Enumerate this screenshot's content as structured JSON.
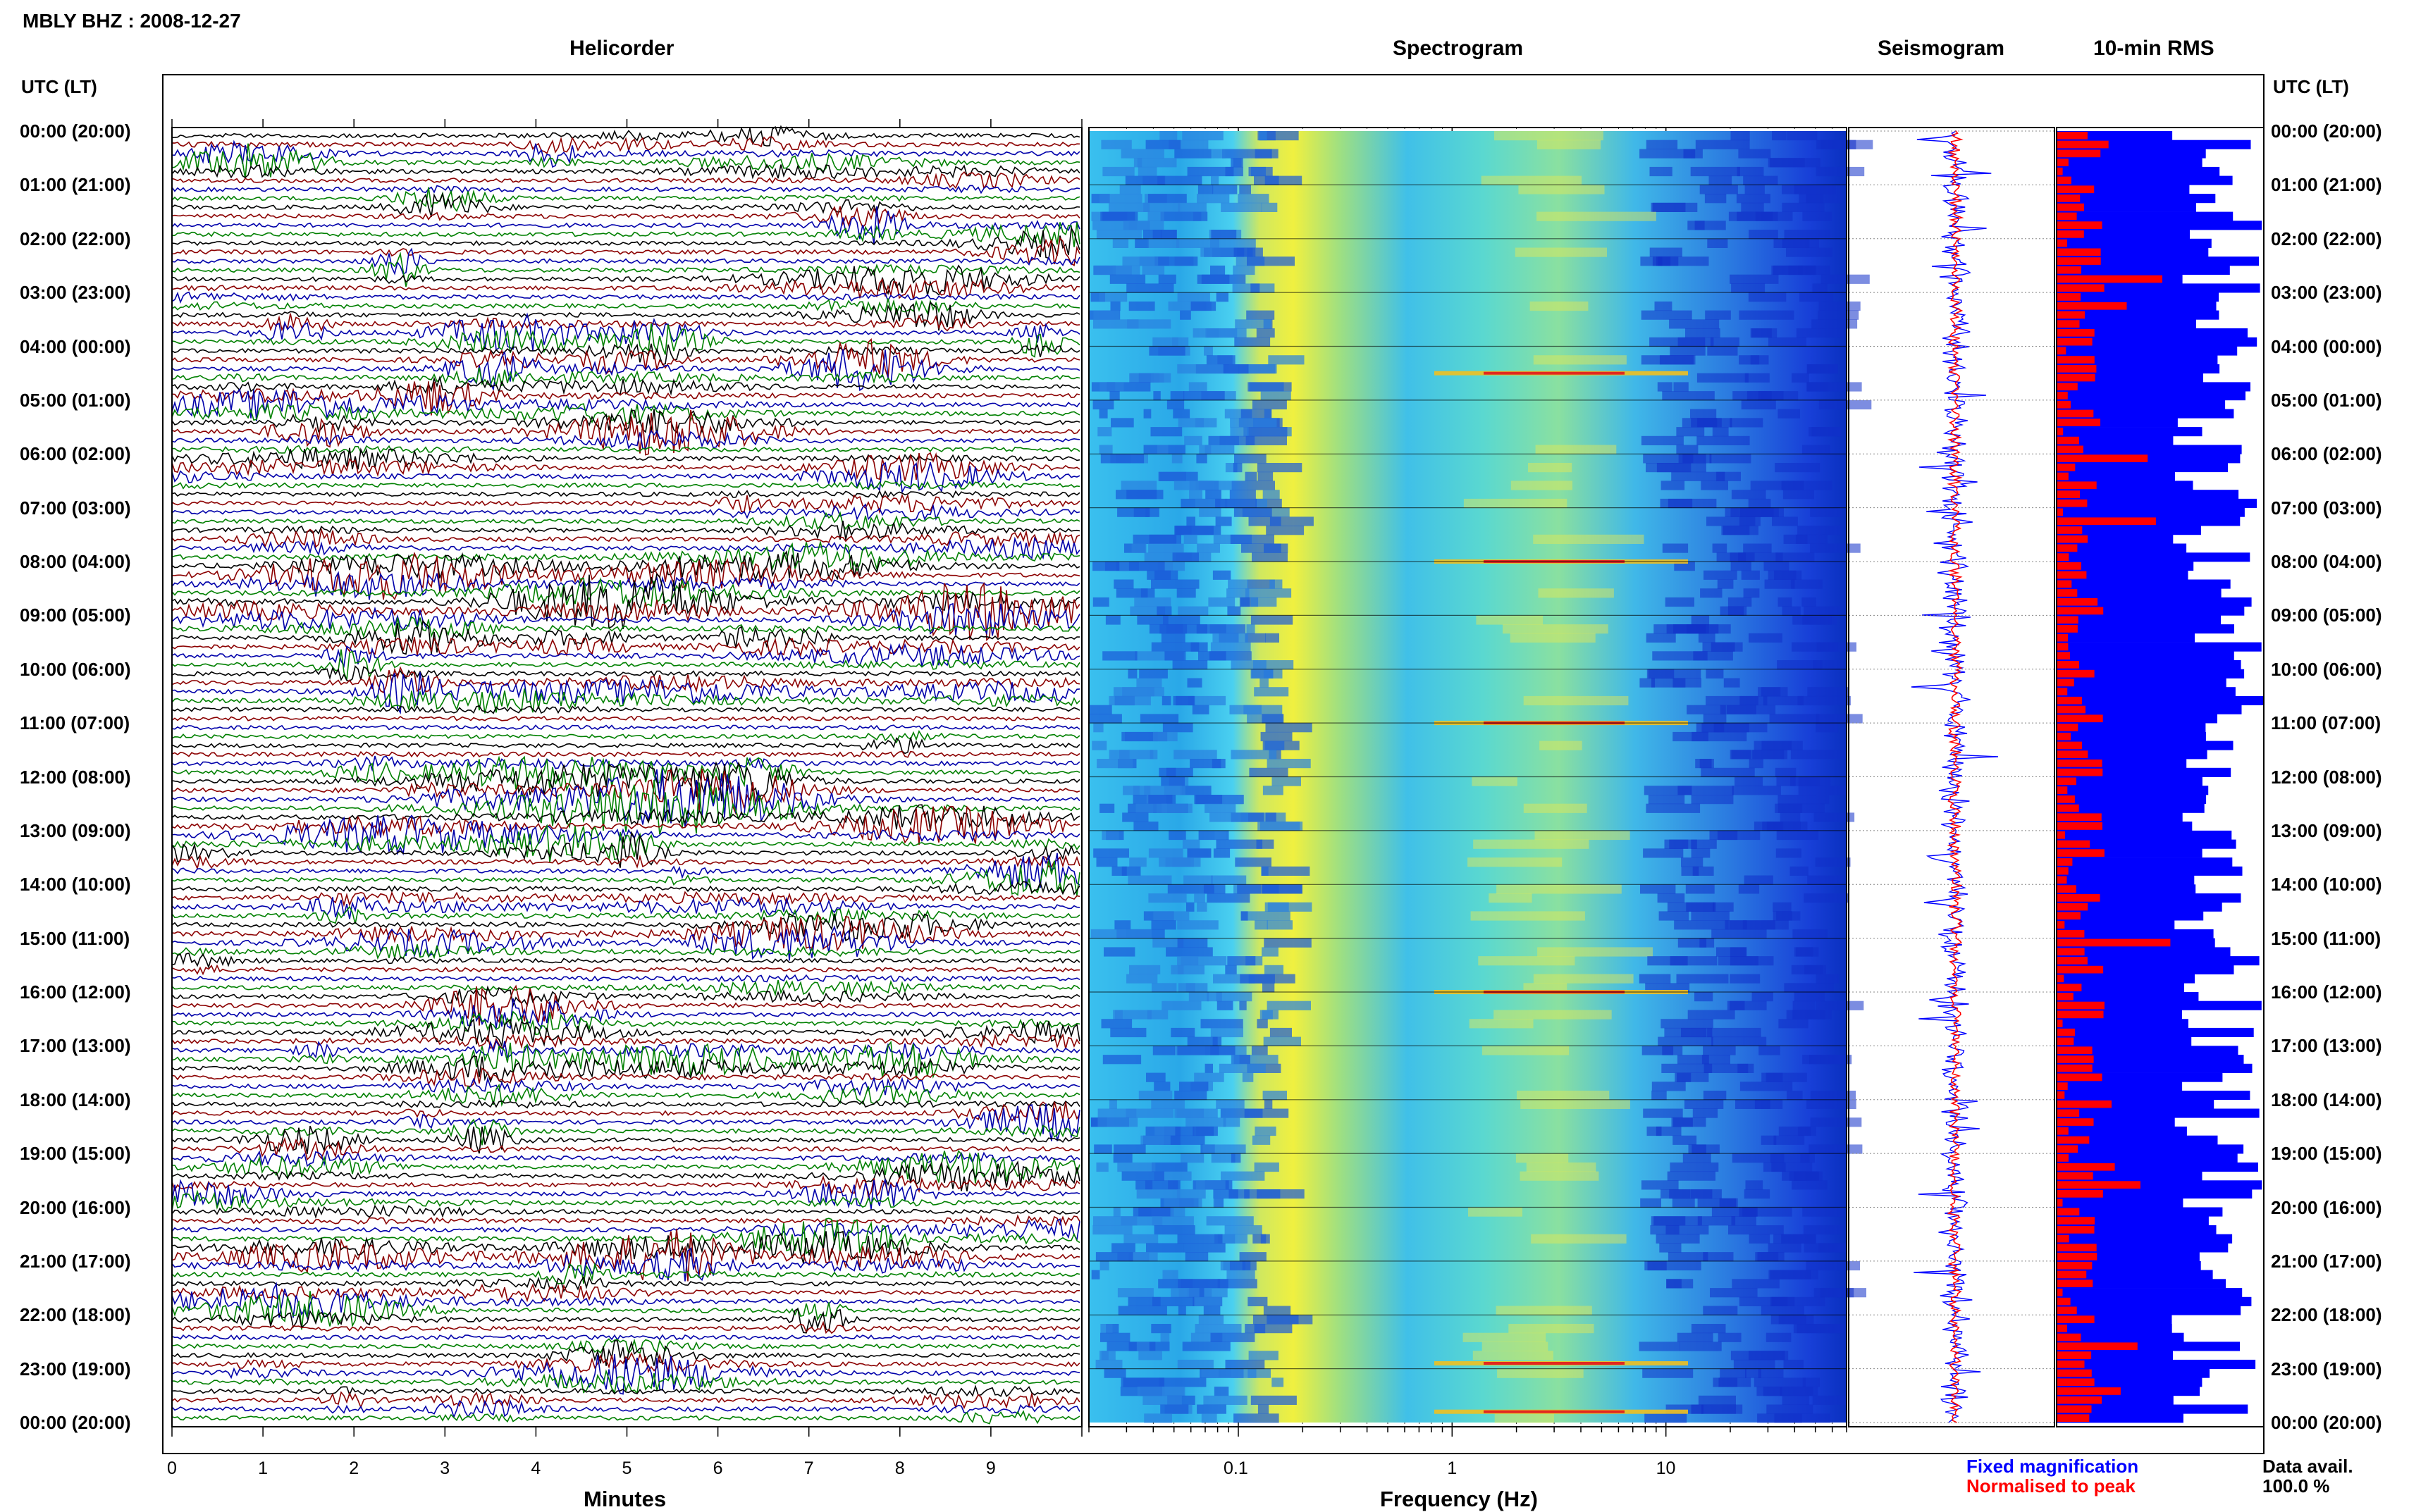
{
  "title": "MBLY BHZ : 2008-12-27",
  "panels": {
    "helicorder": "Helicorder",
    "spectrogram": "Spectrogram",
    "seismogram": "Seismogram",
    "rms": "10-min RMS"
  },
  "time_header_left": "UTC (LT)",
  "time_header_right": "UTC (LT)",
  "time_labels": [
    "00:00 (20:00)",
    "01:00 (21:00)",
    "02:00 (22:00)",
    "03:00 (23:00)",
    "04:00 (00:00)",
    "05:00 (01:00)",
    "06:00 (02:00)",
    "07:00 (03:00)",
    "08:00 (04:00)",
    "09:00 (05:00)",
    "10:00 (06:00)",
    "11:00 (07:00)",
    "12:00 (08:00)",
    "13:00 (09:00)",
    "14:00 (10:00)",
    "15:00 (11:00)",
    "16:00 (12:00)",
    "17:00 (13:00)",
    "18:00 (14:00)",
    "19:00 (15:00)",
    "20:00 (16:00)",
    "21:00 (17:00)",
    "22:00 (18:00)",
    "23:00 (19:00)",
    "00:00 (20:00)"
  ],
  "legend": {
    "fixed": "Fixed magnification",
    "normalised": "Normalised to peak",
    "fixed_color": "#0000ff",
    "normalised_color": "#ff0000"
  },
  "data_avail": {
    "label": "Data avail.",
    "value": "100.0 %"
  },
  "colors": {
    "helicorder_traces": [
      "#000000",
      "#8b0000",
      "#0000aa",
      "#008000"
    ],
    "rms_fixed": "#0000ff",
    "rms_normalised": "#ff0000"
  },
  "chart_data": [
    {
      "type": "line",
      "panel": "Helicorder",
      "xlabel": "Minutes",
      "x_ticks": [
        0,
        1,
        2,
        3,
        4,
        5,
        6,
        7,
        8,
        9
      ],
      "xlim": [
        0,
        10
      ],
      "ylim_hours": [
        0,
        24
      ],
      "row_minutes": 10,
      "rows": 144
    },
    {
      "type": "heatmap",
      "panel": "Spectrogram",
      "xlabel": "Frequency (Hz)",
      "x_scale": "log",
      "x_ticks": [
        0.1,
        1,
        10
      ],
      "x_tick_labels": [
        "0.1",
        "1",
        "10"
      ],
      "xlim": [
        0.02,
        70
      ],
      "dominant_band_hz": [
        0.17,
        0.3
      ],
      "tremor_band_hz": [
        1,
        6
      ],
      "strong_lines_hours": [
        4.5,
        8.0,
        11.0,
        16.0,
        22.9,
        23.8
      ]
    },
    {
      "type": "line",
      "panel": "Seismogram",
      "series": [
        {
          "name": "Fixed magnification",
          "color": "#0000ff"
        },
        {
          "name": "Normalised to peak",
          "color": "#ff0000"
        }
      ]
    },
    {
      "type": "bar",
      "panel": "10-min RMS",
      "orientation": "horizontal",
      "bins": 144,
      "bin_minutes": 10,
      "series": [
        {
          "name": "Fixed magnification",
          "color": "#0000ff"
        },
        {
          "name": "Normalised to peak",
          "color": "#ff0000"
        }
      ]
    }
  ]
}
